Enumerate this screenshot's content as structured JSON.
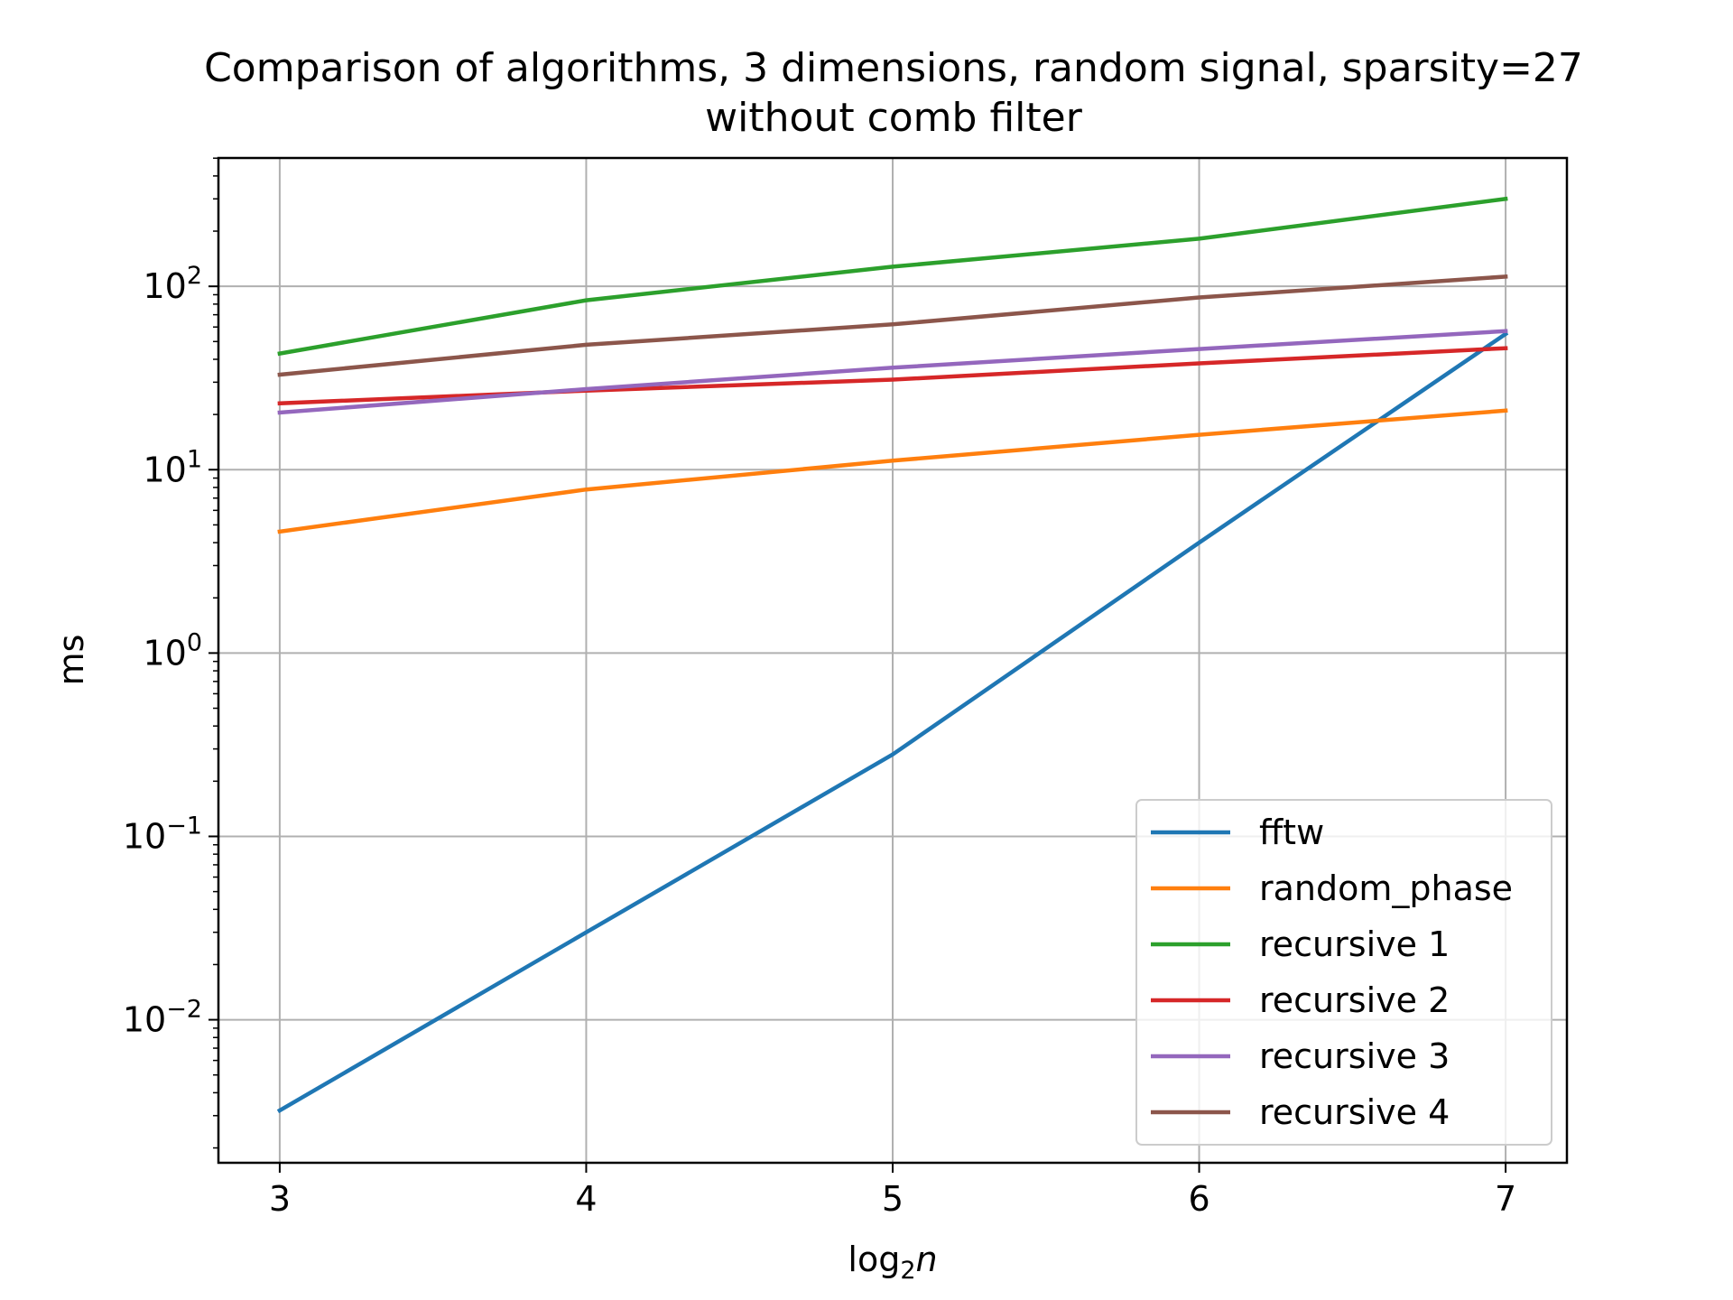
{
  "chart_data": {
    "type": "line",
    "title_line1": "Comparison of algorithms, 3 dimensions, random signal, sparsity=27",
    "title_line2": "without comb filter",
    "xlabel_base": "log",
    "xlabel_sub": "2",
    "xlabel_var": "n",
    "ylabel": "ms",
    "x": [
      3,
      4,
      5,
      6,
      7
    ],
    "xlim": [
      2.8,
      7.2
    ],
    "ylim_log10": [
      -2.78,
      2.7
    ],
    "y_scale": "log",
    "x_ticks": [
      "3",
      "4",
      "5",
      "6",
      "7"
    ],
    "y_ticks": [
      {
        "base": "10",
        "exp": "2",
        "log": 2
      },
      {
        "base": "10",
        "exp": "1",
        "log": 1
      },
      {
        "base": "10",
        "exp": "0",
        "log": 0
      },
      {
        "base": "10",
        "exp": "−1",
        "log": -1
      },
      {
        "base": "10",
        "exp": "−2",
        "log": -2
      }
    ],
    "grid": true,
    "legend_position": "lower-right",
    "series": [
      {
        "name": "fftw",
        "color": "#1f77b4",
        "values": [
          0.0032,
          0.03,
          0.28,
          4.0,
          55
        ]
      },
      {
        "name": "random_phase",
        "color": "#ff7f0e",
        "values": [
          4.6,
          7.8,
          11.2,
          15.5,
          21
        ]
      },
      {
        "name": "recursive 1",
        "color": "#2ca02c",
        "values": [
          43,
          84,
          128,
          182,
          300
        ]
      },
      {
        "name": "recursive 2",
        "color": "#d62728",
        "values": [
          23,
          27,
          31,
          38,
          46
        ]
      },
      {
        "name": "recursive 3",
        "color": "#9467bd",
        "values": [
          20.5,
          27.5,
          36,
          45.5,
          57
        ]
      },
      {
        "name": "recursive 4",
        "color": "#8c564b",
        "values": [
          33,
          48,
          62,
          87,
          113
        ]
      }
    ]
  }
}
